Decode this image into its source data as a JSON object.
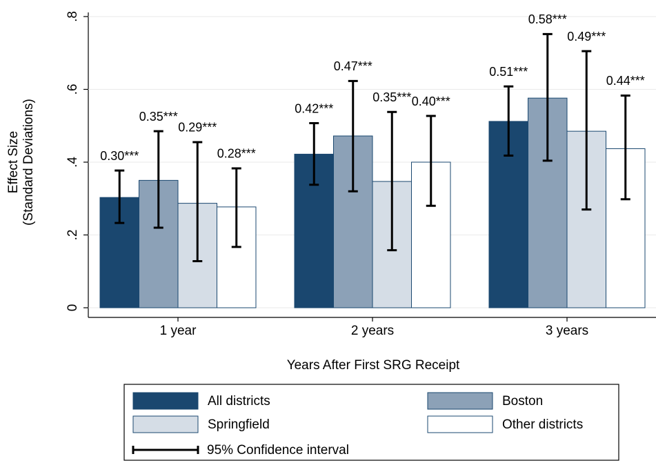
{
  "chart_data": {
    "type": "bar",
    "categories": [
      "1 year",
      "2 years",
      "3 years"
    ],
    "x_label": "Years After First SRG Receipt",
    "y_label": [
      "Effect Size",
      "(Standard Deviations)"
    ],
    "ylim": [
      0,
      0.8
    ],
    "yticks": [
      0,
      {
        "value": 0.2,
        "label": ".2"
      },
      {
        "value": 0.4,
        "label": ".4"
      },
      {
        "value": 0.6,
        "label": ".6"
      },
      {
        "value": 0.8,
        "label": ".8"
      }
    ],
    "grid": true,
    "ci_label": "95% Confidence interval",
    "series": [
      {
        "name": "All districts",
        "color": "#1a476f",
        "values": [
          0.303,
          0.422,
          0.512
        ],
        "value_labels": [
          "0.30***",
          "0.42***",
          "0.51***"
        ],
        "ci_low": [
          0.233,
          0.338,
          0.418
        ],
        "ci_high": [
          0.377,
          0.507,
          0.608
        ]
      },
      {
        "name": "Boston",
        "color": "#8ca1b7",
        "values": [
          0.35,
          0.472,
          0.576
        ],
        "value_labels": [
          "0.35***",
          "0.47***",
          "0.58***"
        ],
        "ci_low": [
          0.22,
          0.32,
          0.404
        ],
        "ci_high": [
          0.485,
          0.623,
          0.752
        ]
      },
      {
        "name": "Springfield",
        "color": "#d5dde6",
        "values": [
          0.287,
          0.347,
          0.485
        ],
        "value_labels": [
          "0.29***",
          "0.35***",
          "0.49***"
        ],
        "ci_low": [
          0.128,
          0.158,
          0.27
        ],
        "ci_high": [
          0.455,
          0.538,
          0.705
        ]
      },
      {
        "name": "Other districts",
        "color": "#ffffff",
        "values": [
          0.277,
          0.4,
          0.437
        ],
        "value_labels": [
          "0.28***",
          "0.40***",
          "0.44***"
        ],
        "ci_low": [
          0.167,
          0.28,
          0.298
        ],
        "ci_high": [
          0.383,
          0.527,
          0.583
        ]
      }
    ]
  }
}
